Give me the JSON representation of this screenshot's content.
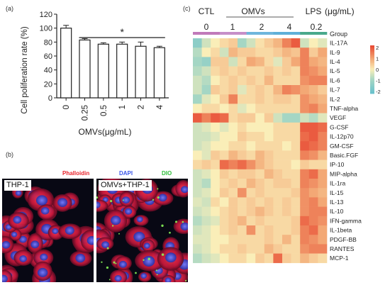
{
  "panels": {
    "a": {
      "label": "(a)"
    },
    "b": {
      "label": "(b)"
    },
    "c": {
      "label": "(c)"
    }
  },
  "chart_data": [
    {
      "type": "bar",
      "ylabel": "Cell poliferation rate (%)",
      "xlabel": "OMVs(μg/mL)",
      "categories": [
        "0",
        "0.25",
        "0.5",
        "1",
        "2",
        "4"
      ],
      "values": [
        100,
        83,
        77,
        77,
        74,
        72
      ],
      "errors": [
        4,
        2,
        2,
        3,
        6,
        2
      ],
      "ylim": [
        0,
        120
      ],
      "yticks": [
        "0",
        "20",
        "40",
        "60",
        "80",
        "100",
        "120"
      ],
      "significance": "*"
    },
    {
      "type": "heatmap",
      "group_headers": [
        {
          "text": "CTL",
          "sub": "0",
          "color": "#c07ab9"
        },
        {
          "text": "",
          "sub": "1",
          "color": "#c07ab9"
        },
        {
          "text": "",
          "sub": "2",
          "color": "#5fb0d8"
        },
        {
          "text": "",
          "sub": "4",
          "color": "#5fb0d8"
        },
        {
          "text": "LPS",
          "sub": "0.2",
          "color": "#49a98b"
        }
      ],
      "omvs_label": "OMVs",
      "units_label": "(μg/mL)",
      "group_row_label": "Group",
      "rows": [
        "IL-17A",
        "IL-9",
        "IL-4",
        "IL-5",
        "IL-6",
        "IL-7",
        "IL-2",
        "TNF-alpha",
        "VEGF",
        "G-CSF",
        "IL-12p70",
        "GM-CSF",
        "Basic.FGF",
        "IP-10",
        "MIP-alpha",
        "IL-1ra",
        "IL-15",
        "IL-13",
        "IL-10",
        "IFN-gamma",
        "IL-1beta",
        "PDGF-BB",
        "RANTES",
        "MCP-1"
      ],
      "columns": 15,
      "values": [
        [
          -1.5,
          -0.5,
          0,
          0.3,
          0.5,
          -1,
          -0.5,
          0.2,
          0.5,
          0.8,
          1.5,
          2,
          -0.5,
          0,
          -0.3
        ],
        [
          -0.8,
          0,
          0.3,
          -0.5,
          0.8,
          0.5,
          0.5,
          0.3,
          0.3,
          0.5,
          0.8,
          0.6,
          1.5,
          0.5,
          1
        ],
        [
          -1,
          -1.3,
          0.5,
          0.5,
          -0.5,
          0.3,
          1,
          0.8,
          0.3,
          -0.3,
          0.5,
          1,
          1.5,
          1,
          0.8
        ],
        [
          -0.8,
          -0.5,
          0.3,
          0.5,
          0.3,
          0.5,
          0.3,
          0.3,
          0.5,
          0.3,
          0.5,
          0.3,
          1.5,
          1.3,
          1
        ],
        [
          -0.5,
          -0.8,
          0,
          0.3,
          0.5,
          0.3,
          0.5,
          0.3,
          0.8,
          0.3,
          0.3,
          0.3,
          1.3,
          1.5,
          1.5
        ],
        [
          -0.5,
          -1,
          0.5,
          0.3,
          0.5,
          -0.3,
          0.3,
          0.5,
          0.3,
          0.8,
          1.5,
          1.3,
          1,
          0.8,
          0.5
        ],
        [
          -1,
          -0.3,
          0,
          0.5,
          1.5,
          0.3,
          0.3,
          0.5,
          0.3,
          0.5,
          0.5,
          0.3,
          1.3,
          1,
          0.8
        ],
        [
          0,
          0.3,
          0.3,
          0,
          0.3,
          -0.3,
          0,
          0.3,
          0.3,
          0.3,
          0.3,
          0.3,
          1.3,
          1.5,
          1
        ],
        [
          2,
          1.5,
          2,
          1.8,
          0.3,
          0.5,
          0.5,
          0,
          0.5,
          -0.5,
          -1,
          -1,
          -0.5,
          -0.8,
          -0.3
        ],
        [
          -0.5,
          -0.3,
          0,
          -0.3,
          0,
          0.3,
          0,
          0,
          0,
          0.3,
          0.3,
          0.3,
          2,
          2,
          1.8
        ],
        [
          -0.5,
          -0.5,
          -0.3,
          0,
          0,
          0.5,
          0.3,
          0.3,
          0,
          0.3,
          0.3,
          0.3,
          1.8,
          2,
          1.5
        ],
        [
          -0.5,
          -0.3,
          0,
          0,
          0.3,
          0.3,
          0,
          0.3,
          0.3,
          0.3,
          0,
          0.3,
          2,
          1.8,
          1.5
        ],
        [
          0,
          -0.3,
          0.5,
          0.3,
          0.8,
          0.5,
          0.3,
          0.8,
          0.5,
          0.3,
          0.3,
          0.3,
          1.5,
          1.3,
          0.8
        ],
        [
          0.3,
          0.5,
          0.3,
          1.8,
          1.5,
          1.8,
          1.3,
          0.8,
          0.5,
          0.3,
          0.3,
          0,
          0.5,
          0.3,
          0.3
        ],
        [
          -0.5,
          -0.3,
          0,
          0.5,
          0.3,
          0.5,
          0.5,
          0.3,
          0.8,
          0.5,
          0.3,
          0.3,
          1.5,
          1.8,
          1
        ],
        [
          -0.5,
          -0.8,
          0,
          0.3,
          0.5,
          0.3,
          0.8,
          0.5,
          0.3,
          0.5,
          0.5,
          0.3,
          1.5,
          1.3,
          1
        ],
        [
          -0.5,
          -0.3,
          0,
          0.5,
          0.3,
          1.3,
          0.3,
          0.5,
          0.3,
          0.3,
          0.3,
          0.5,
          1.3,
          1,
          0.8
        ],
        [
          -0.3,
          -0.5,
          0.3,
          0,
          0.5,
          0.3,
          0.5,
          0.3,
          0.5,
          0.3,
          0.5,
          0.3,
          1.3,
          1.5,
          1
        ],
        [
          -0.5,
          -0.3,
          0,
          0.3,
          0.5,
          0.3,
          0.5,
          0.8,
          0.5,
          0.3,
          0.5,
          0.3,
          1.3,
          1.5,
          1.5
        ],
        [
          -0.8,
          -0.5,
          -0.3,
          0.3,
          0.5,
          0.8,
          0.3,
          0.5,
          0.3,
          0.3,
          0.3,
          0.5,
          1.8,
          1.5,
          1.3
        ],
        [
          -0.5,
          -0.3,
          0,
          0.3,
          0.5,
          0.3,
          1.3,
          0.3,
          0.5,
          0.3,
          0.3,
          0.5,
          1.5,
          1.8,
          1
        ],
        [
          -0.3,
          -0.3,
          0,
          0,
          0.3,
          0.3,
          0.3,
          0.3,
          0.5,
          0.3,
          0.8,
          0.3,
          1.5,
          1.3,
          1
        ],
        [
          -0.5,
          -0.3,
          0,
          0.3,
          0.3,
          0.5,
          0.3,
          0.3,
          0.8,
          0.5,
          0.3,
          0.3,
          1.3,
          1.5,
          1.5
        ],
        [
          -0.8,
          -0.5,
          -0.3,
          0,
          0.3,
          0.3,
          0,
          0.5,
          0.3,
          1.8,
          0.5,
          0.3,
          0.8,
          0.5,
          0.3
        ]
      ],
      "legend_ticks": [
        "2",
        "1",
        "0",
        "-1",
        "-2"
      ],
      "vmin": -2.2,
      "vmax": 2.2
    }
  ],
  "micrographs": [
    {
      "label": "THP-1",
      "stains": [
        {
          "text": "Phalloidin",
          "color": "#e8222a"
        }
      ]
    },
    {
      "label": "OMVs+THP-1",
      "stains": [
        {
          "text": "DAPI",
          "color": "#3a55e8"
        },
        {
          "text": "DIO",
          "color": "#2fbf3a"
        }
      ]
    }
  ]
}
